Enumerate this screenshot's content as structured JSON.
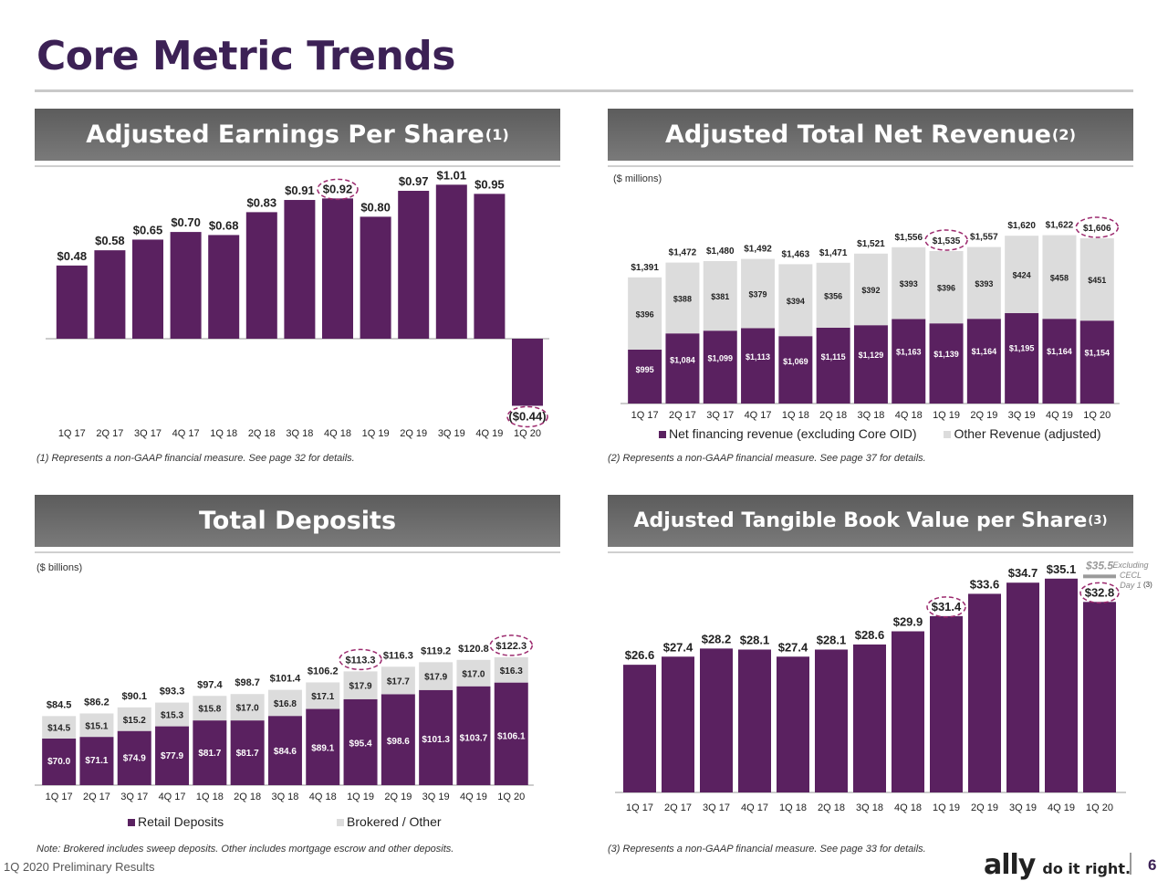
{
  "page": {
    "title": "Core Metric Trends",
    "footer_label": "1Q 2020 Preliminary Results",
    "page_number": "6",
    "logo_text": "ally",
    "logo_tagline": "do it right.",
    "colors": {
      "primary": "#5a2160",
      "secondary": "#dcdcdc",
      "title": "#3c2155",
      "highlight": "#9c2a6e"
    }
  },
  "panels": {
    "eps": {
      "title": "Adjusted Earnings Per Share",
      "title_sup": "(1)",
      "footnote": "(1)  Represents a non-GAAP financial measure. See page 32 for details."
    },
    "revenue": {
      "title": "Adjusted Total Net Revenue",
      "title_sup": "(2)",
      "unit": "($ millions)",
      "footnote": "(2)  Represents a non-GAAP financial measure. See page 37 for details.",
      "legend": [
        "Net financing revenue (excluding Core OID)",
        "Other Revenue (adjusted)"
      ]
    },
    "deposits": {
      "title": "Total Deposits",
      "unit": "($ billions)",
      "footnote": "Note: Brokered includes sweep deposits. Other includes mortgage escrow and other deposits.",
      "legend": [
        "Retail Deposits",
        "Brokered / Other"
      ]
    },
    "tbv": {
      "title": "Adjusted Tangible Book Value per Share",
      "title_sup": "(3)",
      "footnote": "(3)  Represents a non-GAAP financial measure. See page 33 for details.",
      "annotation": [
        "Excluding",
        "CECL",
        "Day 1"
      ],
      "annotation_sup": "(3)"
    }
  },
  "chart_data": [
    {
      "type": "bar",
      "title": "Adjusted Earnings Per Share",
      "categories": [
        "1Q 17",
        "2Q 17",
        "3Q 17",
        "4Q 17",
        "1Q 18",
        "2Q 18",
        "3Q 18",
        "4Q 18",
        "1Q 19",
        "2Q 19",
        "3Q 19",
        "4Q 19",
        "1Q 20"
      ],
      "values": [
        0.48,
        0.58,
        0.65,
        0.7,
        0.68,
        0.83,
        0.91,
        0.92,
        0.8,
        0.97,
        1.01,
        0.95,
        -0.44
      ],
      "labels": [
        "$0.48",
        "$0.58",
        "$0.65",
        "$0.70",
        "$0.68",
        "$0.83",
        "$0.91",
        "$0.92",
        "$0.80",
        "$0.97",
        "$1.01",
        "$0.95",
        "($0.44)"
      ],
      "highlighted": [
        "4Q 18",
        "1Q 20"
      ],
      "ylim": [
        -0.44,
        1.01
      ],
      "grid": false
    },
    {
      "type": "bar",
      "stacked": true,
      "title": "Adjusted Total Net Revenue",
      "unit": "($ millions)",
      "categories": [
        "1Q 17",
        "2Q 17",
        "3Q 17",
        "4Q 17",
        "1Q 18",
        "2Q 18",
        "3Q 18",
        "4Q 18",
        "1Q 19",
        "2Q 19",
        "3Q 19",
        "4Q 19",
        "1Q 20"
      ],
      "series": [
        {
          "name": "Net financing revenue (excluding Core OID)",
          "values": [
            995,
            1084,
            1099,
            1113,
            1069,
            1115,
            1129,
            1163,
            1139,
            1164,
            1195,
            1164,
            1154
          ],
          "labels": [
            "$995",
            "$1,084",
            "$1,099",
            "$1,113",
            "$1,069",
            "$1,115",
            "$1,129",
            "$1,163",
            "$1,139",
            "$1,164",
            "$1,195",
            "$1,164",
            "$1,154"
          ]
        },
        {
          "name": "Other Revenue (adjusted)",
          "values": [
            396,
            388,
            381,
            379,
            394,
            356,
            392,
            393,
            396,
            393,
            424,
            458,
            451
          ],
          "labels": [
            "$396",
            "$388",
            "$381",
            "$379",
            "$394",
            "$356",
            "$392",
            "$393",
            "$396",
            "$393",
            "$424",
            "$458",
            "$451"
          ]
        }
      ],
      "totals": [
        1391,
        1472,
        1480,
        1492,
        1463,
        1471,
        1521,
        1556,
        1535,
        1557,
        1620,
        1622,
        1606
      ],
      "total_labels": [
        "$1,391",
        "$1,472",
        "$1,480",
        "$1,492",
        "$1,463",
        "$1,471",
        "$1,521",
        "$1,556",
        "$1,535",
        "$1,557",
        "$1,620",
        "$1,622",
        "$1,606"
      ],
      "highlighted": [
        "1Q 19",
        "1Q 20"
      ],
      "legend": "bottom"
    },
    {
      "type": "bar",
      "stacked": true,
      "title": "Total Deposits",
      "unit": "($ billions)",
      "categories": [
        "1Q 17",
        "2Q 17",
        "3Q 17",
        "4Q 17",
        "1Q 18",
        "2Q 18",
        "3Q 18",
        "4Q 18",
        "1Q 19",
        "2Q 19",
        "3Q 19",
        "4Q 19",
        "1Q 20"
      ],
      "series": [
        {
          "name": "Retail Deposits",
          "values": [
            70.0,
            71.1,
            74.9,
            77.9,
            81.7,
            81.7,
            84.6,
            89.1,
            95.4,
            98.6,
            101.3,
            103.7,
            106.1
          ],
          "labels": [
            "$70.0",
            "$71.1",
            "$74.9",
            "$77.9",
            "$81.7",
            "$81.7",
            "$84.6",
            "$89.1",
            "$95.4",
            "$98.6",
            "$101.3",
            "$103.7",
            "$106.1"
          ]
        },
        {
          "name": "Brokered / Other",
          "values": [
            14.5,
            15.1,
            15.2,
            15.3,
            15.8,
            17.0,
            16.8,
            17.1,
            17.9,
            17.7,
            17.9,
            17.0,
            16.3
          ],
          "labels": [
            "$14.5",
            "$15.1",
            "$15.2",
            "$15.3",
            "$15.8",
            "$17.0",
            "$16.8",
            "$17.1",
            "$17.9",
            "$17.7",
            "$17.9",
            "$17.0",
            "$16.3"
          ]
        }
      ],
      "totals": [
        84.5,
        86.2,
        90.1,
        93.3,
        97.4,
        98.7,
        101.4,
        106.2,
        113.3,
        116.3,
        119.2,
        120.8,
        122.3
      ],
      "total_labels": [
        "$84.5",
        "$86.2",
        "$90.1",
        "$93.3",
        "$97.4",
        "$98.7",
        "$101.4",
        "$106.2",
        "$113.3",
        "$116.3",
        "$119.2",
        "$120.8",
        "$122.3"
      ],
      "highlighted": [
        "1Q 19",
        "1Q 20"
      ],
      "legend": "bottom"
    },
    {
      "type": "bar",
      "title": "Adjusted Tangible Book Value per Share",
      "categories": [
        "1Q 17",
        "2Q 17",
        "3Q 17",
        "4Q 17",
        "1Q 18",
        "2Q 18",
        "3Q 18",
        "4Q 18",
        "1Q 19",
        "2Q 19",
        "3Q 19",
        "4Q 19",
        "1Q 20"
      ],
      "values": [
        26.6,
        27.4,
        28.2,
        28.1,
        27.4,
        28.1,
        28.6,
        29.9,
        31.4,
        33.6,
        34.7,
        35.1,
        32.8
      ],
      "labels": [
        "$26.6",
        "$27.4",
        "$28.2",
        "$28.1",
        "$27.4",
        "$28.1",
        "$28.6",
        "$29.9",
        "$31.4",
        "$33.6",
        "$34.7",
        "$35.1",
        "$32.8"
      ],
      "excluding_cecl_value": 35.5,
      "excluding_cecl_label": "$35.5",
      "highlighted": [
        "1Q 19",
        "1Q 20"
      ]
    }
  ]
}
